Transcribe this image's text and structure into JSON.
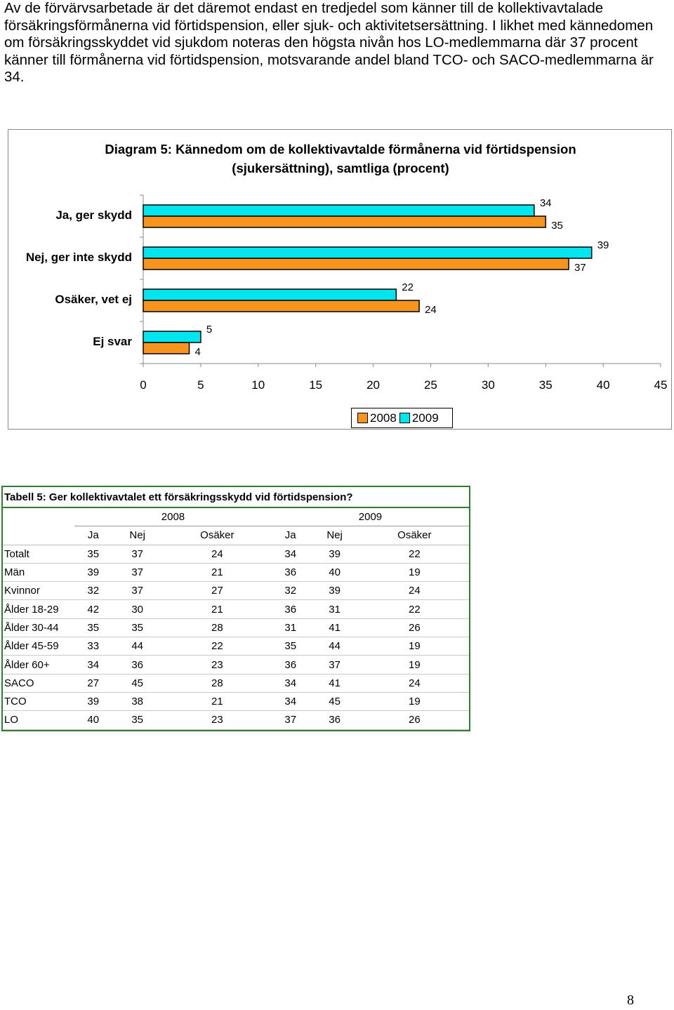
{
  "intro_text": "Av de förvärvsarbetade är det däremot endast en tredjedel som känner till de kollektivavtalade försäkringsförmånerna vid förtidspension, eller sjuk- och aktivitetsersättning. I likhet med kännedomen om försäkringsskyddet vid sjukdom noteras den högsta nivån hos LO-medlemmarna där 37 procent känner till förmånerna vid förtidspension, motsvarande andel bland TCO- och SACO-medlemmarna är 34.",
  "chart_data": {
    "type": "bar",
    "orientation": "horizontal",
    "title_line1": "Diagram 5: Kännedom om de kollektivavtalde förmånerna vid förtidspension",
    "title_line2": "(sjukersättning), samtliga (procent)",
    "categories": [
      "Ja, ger skydd",
      "Nej, ger inte skydd",
      "Osäker, vet ej",
      "Ej svar"
    ],
    "series": [
      {
        "name": "2008",
        "values": [
          35,
          37,
          24,
          4
        ],
        "color": "#F7941D"
      },
      {
        "name": "2009",
        "values": [
          34,
          39,
          22,
          5
        ],
        "color": "#00E5EE"
      }
    ],
    "xlim": [
      0,
      45
    ],
    "xticks": [
      "0",
      "5",
      "10",
      "15",
      "20",
      "25",
      "30",
      "35",
      "40",
      "45"
    ],
    "legend_position": "bottom",
    "grid": false
  },
  "table": {
    "caption": "Tabell 5: Ger kollektivavtalet ett försäkringsskydd vid förtidspension?",
    "years": [
      "2008",
      "2009"
    ],
    "columns": [
      "Ja",
      "Nej",
      "Osäker",
      "Ja",
      "Nej",
      "Osäker"
    ],
    "rows": [
      {
        "label": "Totalt",
        "values": [
          "35",
          "37",
          "24",
          "34",
          "39",
          "22"
        ]
      },
      {
        "label": "Män",
        "values": [
          "39",
          "37",
          "21",
          "36",
          "40",
          "19"
        ]
      },
      {
        "label": "Kvinnor",
        "values": [
          "32",
          "37",
          "27",
          "32",
          "39",
          "24"
        ]
      },
      {
        "label": "Ålder 18-29",
        "values": [
          "42",
          "30",
          "21",
          "36",
          "31",
          "22"
        ]
      },
      {
        "label": "Ålder 30-44",
        "values": [
          "35",
          "35",
          "28",
          "31",
          "41",
          "26"
        ]
      },
      {
        "label": "Ålder 45-59",
        "values": [
          "33",
          "44",
          "22",
          "35",
          "44",
          "19"
        ]
      },
      {
        "label": "Ålder 60+",
        "values": [
          "34",
          "36",
          "23",
          "36",
          "37",
          "19"
        ]
      },
      {
        "label": "SACO",
        "values": [
          "27",
          "45",
          "28",
          "34",
          "41",
          "24"
        ]
      },
      {
        "label": "TCO",
        "values": [
          "39",
          "38",
          "21",
          "34",
          "45",
          "19"
        ]
      },
      {
        "label": "LO",
        "values": [
          "40",
          "35",
          "23",
          "37",
          "36",
          "26"
        ]
      }
    ]
  },
  "page_number": "8"
}
